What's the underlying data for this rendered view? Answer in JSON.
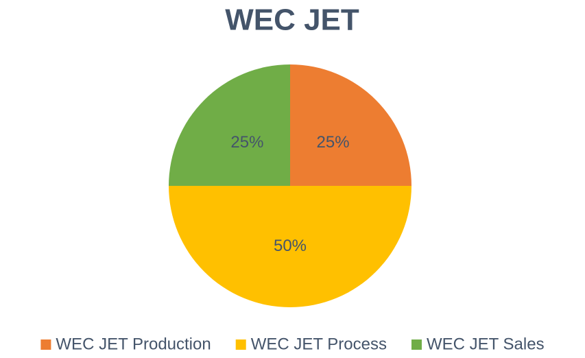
{
  "chart_data": {
    "type": "pie",
    "title": "WEC JET",
    "categories": [
      "WEC JET Production",
      "WEC JET Process",
      "WEC JET Sales"
    ],
    "values": [
      25,
      50,
      25
    ],
    "value_labels": [
      "25%",
      "50%",
      "25%"
    ],
    "colors": [
      "#ed7d31",
      "#ffc000",
      "#70ad47"
    ],
    "legend": "bottom"
  }
}
